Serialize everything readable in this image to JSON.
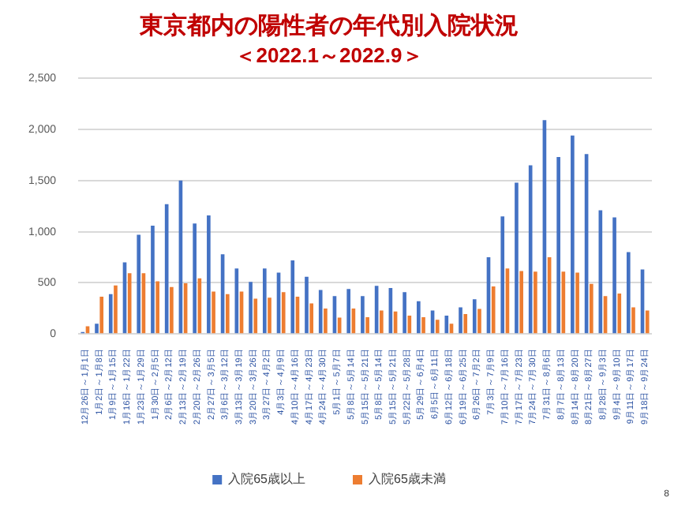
{
  "chart_data": {
    "type": "bar",
    "title": "東京都内の陽性者の年代別入院状況",
    "subtitle": "＜2022.1～2022.9＞",
    "categories": [
      "12月26日～1月1日",
      "1月2日～1月8日",
      "1月9日～1月15日",
      "1月16日～1月22日",
      "1月23日～1月29日",
      "1月30日～2月5日",
      "2月6日～2月12日",
      "2月13日～2月19日",
      "2月20日～2月26日",
      "2月27日～3月5日",
      "3月6日～3月12日",
      "3月13日～3月19日",
      "3月20日～3月26日",
      "3月27日～4月2日",
      "4月3日～4月9日",
      "4月10日～4月16日",
      "4月17日～4月23日",
      "4月24日～4月30日",
      "5月1日～5月7日",
      "5月8日～5月14日",
      "5月15日～5月21日",
      "5月8日～5月14日",
      "5月15日～5月21日",
      "5月22日～5月28日",
      "5月29日～6月4日",
      "6月5日～6月11日",
      "6月12日～6月18日",
      "6月19日～6月25日",
      "6月26日～7月2日",
      "7月3日～7月9日",
      "7月10日～7月16日",
      "7月17日～7月23日",
      "7月24日～7月30日",
      "7月31日～8月6日",
      "8月7日～8月13日",
      "8月14日～8月20日",
      "8月21日～8月27日",
      "8月28日～9月3日",
      "9月4日～9月10日",
      "9月11日～9月17日",
      "9月18日～9月24日"
    ],
    "series": [
      {
        "name": "入院65歳以上",
        "color": "#4472c4",
        "values": [
          20,
          100,
          390,
          700,
          970,
          1060,
          1270,
          1500,
          1080,
          1160,
          780,
          640,
          510,
          640,
          600,
          720,
          560,
          430,
          370,
          440,
          370,
          470,
          450,
          410,
          320,
          230,
          180,
          260,
          340,
          750,
          1150,
          1480,
          1650,
          2090,
          1730,
          1940,
          1760,
          1210,
          1140,
          800,
          630
        ]
      },
      {
        "name": "入院65歳未満",
        "color": "#ed7d31",
        "values": [
          75,
          365,
          475,
          595,
          595,
          515,
          460,
          495,
          545,
          415,
          390,
          415,
          345,
          355,
          410,
          365,
          300,
          250,
          160,
          250,
          165,
          230,
          220,
          180,
          165,
          140,
          100,
          195,
          245,
          465,
          640,
          615,
          610,
          750,
          610,
          600,
          490,
          370,
          395,
          260,
          230
        ]
      }
    ],
    "ylim": [
      0,
      2500
    ],
    "yticks": [
      {
        "value": 0,
        "label": "0"
      },
      {
        "value": 500,
        "label": "500"
      },
      {
        "value": 1000,
        "label": "1,000"
      },
      {
        "value": 1500,
        "label": "1,500"
      },
      {
        "value": 2000,
        "label": "2,000"
      },
      {
        "value": 2500,
        "label": "2,500"
      }
    ],
    "grid": "y",
    "legend": "bottom",
    "annotations": [
      "8"
    ]
  }
}
